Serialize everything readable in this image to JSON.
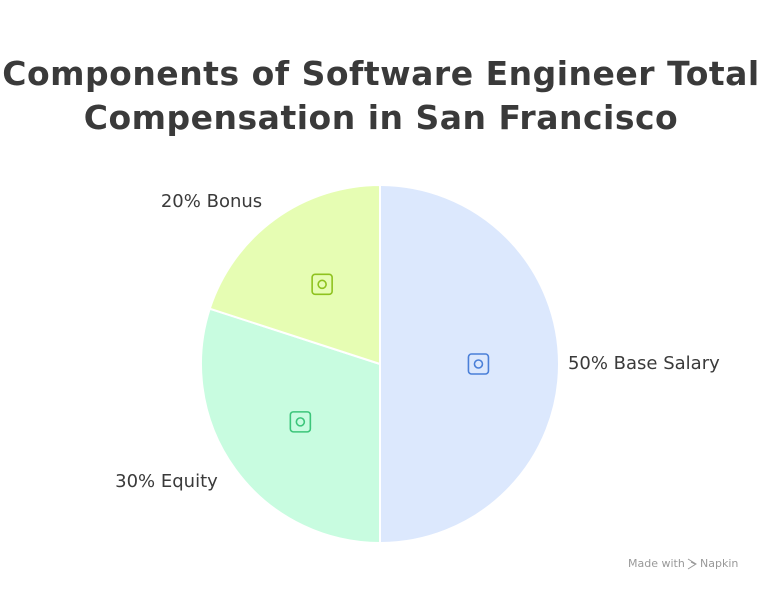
{
  "chart_data": {
    "type": "pie",
    "title": "Components of Software Engineer Total Compensation in San Francisco",
    "categories": [
      "Base Salary",
      "Equity",
      "Bonus"
    ],
    "values": [
      50,
      30,
      20
    ],
    "value_labels": [
      "50% Base Salary",
      "30% Equity",
      "20% Bonus"
    ],
    "colors": [
      "#dce8fd",
      "#c8fce0",
      "#e6fdb3"
    ],
    "icon_colors": [
      "#4a7fd8",
      "#3cc57a",
      "#8fc21f"
    ]
  },
  "watermark": [
    "Made with",
    "Napkin"
  ]
}
